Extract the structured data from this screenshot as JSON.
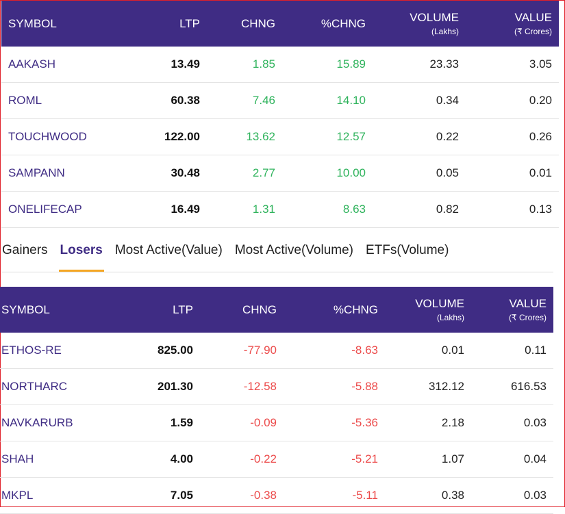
{
  "columns": {
    "symbol": "SYMBOL",
    "ltp": "LTP",
    "chng": "CHNG",
    "pchng": "%CHNG",
    "volume": "VOLUME",
    "volume_unit": "(Lakhs)",
    "value": "VALUE",
    "value_unit": "(₹ Crores)"
  },
  "top_table": {
    "rows": [
      {
        "symbol": "AAKASH",
        "ltp": "13.49",
        "chng": "1.85",
        "pchng": "15.89",
        "volume": "23.33",
        "value": "3.05"
      },
      {
        "symbol": "ROML",
        "ltp": "60.38",
        "chng": "7.46",
        "pchng": "14.10",
        "volume": "0.34",
        "value": "0.20"
      },
      {
        "symbol": "TOUCHWOOD",
        "ltp": "122.00",
        "chng": "13.62",
        "pchng": "12.57",
        "volume": "0.22",
        "value": "0.26"
      },
      {
        "symbol": "SAMPANN",
        "ltp": "30.48",
        "chng": "2.77",
        "pchng": "10.00",
        "volume": "0.05",
        "value": "0.01"
      },
      {
        "symbol": "ONELIFECAP",
        "ltp": "16.49",
        "chng": "1.31",
        "pchng": "8.63",
        "volume": "0.82",
        "value": "0.13"
      }
    ]
  },
  "tabs": [
    {
      "label": "Gainers",
      "active": false
    },
    {
      "label": "Losers",
      "active": true
    },
    {
      "label": "Most Active(Value)",
      "active": false
    },
    {
      "label": "Most Active(Volume)",
      "active": false
    },
    {
      "label": "ETFs(Volume)",
      "active": false
    }
  ],
  "bottom_table": {
    "rows": [
      {
        "symbol": "ETHOS-RE",
        "ltp": "825.00",
        "chng": "-77.90",
        "pchng": "-8.63",
        "volume": "0.01",
        "value": "0.11"
      },
      {
        "symbol": "NORTHARC",
        "ltp": "201.30",
        "chng": "-12.58",
        "pchng": "-5.88",
        "volume": "312.12",
        "value": "616.53"
      },
      {
        "symbol": "NAVKARURB",
        "ltp": "1.59",
        "chng": "-0.09",
        "pchng": "-5.36",
        "volume": "2.18",
        "value": "0.03"
      },
      {
        "symbol": "SHAH",
        "ltp": "4.00",
        "chng": "-0.22",
        "pchng": "-5.21",
        "volume": "1.07",
        "value": "0.04"
      },
      {
        "symbol": "MKPL",
        "ltp": "7.05",
        "chng": "-0.38",
        "pchng": "-5.11",
        "volume": "0.38",
        "value": "0.03"
      }
    ]
  },
  "colors": {
    "header_bg": "#3f2c84",
    "gain": "#2fb35c",
    "loss": "#ec4b4b",
    "tab_underline": "#f5a623",
    "frame_border": "#e0202a"
  }
}
